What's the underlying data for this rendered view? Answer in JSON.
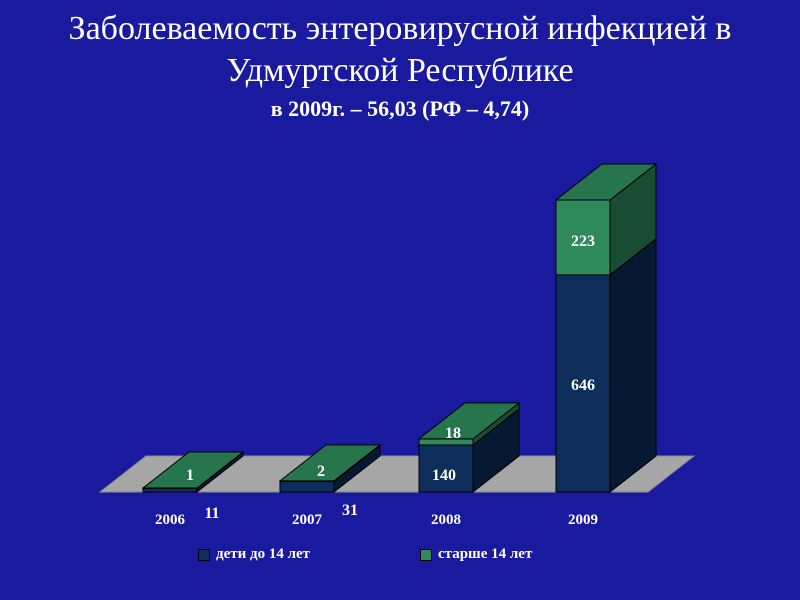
{
  "title_line1": "Заболеваемость энтеровирусной инфекцией в",
  "title_line2": "Удмуртской Республике",
  "subtitle": "в 2009г. – 56,03 (РФ – 4,74)",
  "colors": {
    "background": "#1a1a9e",
    "children": "#0d2e5a",
    "older": "#2e8a5a",
    "floor": "#a6a6a6"
  },
  "chart_data": {
    "type": "bar",
    "stacked": true,
    "three_d": true,
    "categories": [
      "2006",
      "2007",
      "2008",
      "2009"
    ],
    "series": [
      {
        "name": "дети до 14 лет",
        "values": [
          11,
          31,
          140,
          646
        ],
        "labels": [
          "11",
          "31",
          "140",
          "646"
        ]
      },
      {
        "name": "старше 14 лет",
        "values": [
          1,
          2,
          18,
          223
        ],
        "labels": [
          "1",
          "2",
          "18",
          "223"
        ]
      }
    ],
    "legend_position": "bottom"
  }
}
